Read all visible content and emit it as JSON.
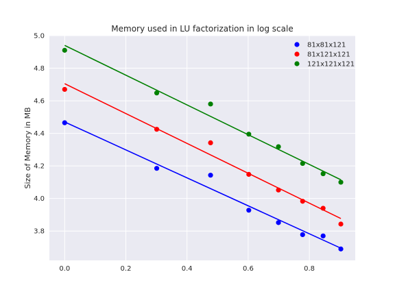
{
  "chart_data": {
    "type": "scatter",
    "title": "Memory used in LU factorization in log scale",
    "xlabel": "",
    "ylabel": "Size of Memory in MB",
    "xlim": [
      -0.05,
      0.95
    ],
    "ylim": [
      3.62,
      5.0
    ],
    "xticks": [
      0.0,
      0.2,
      0.4,
      0.6,
      0.8
    ],
    "xtick_labels": [
      "0.0",
      "0.2",
      "0.4",
      "0.6",
      "0.8"
    ],
    "yticks": [
      3.8,
      4.0,
      4.2,
      4.4,
      4.6,
      4.8,
      5.0
    ],
    "ytick_labels": [
      "3.8",
      "4.0",
      "4.2",
      "4.4",
      "4.6",
      "4.8",
      "5.0"
    ],
    "grid": true,
    "legend_position": "top-right",
    "x": [
      0.0,
      0.301,
      0.477,
      0.602,
      0.699,
      0.778,
      0.845,
      0.903
    ],
    "series": [
      {
        "name": "81x81x121",
        "color": "#0000ff",
        "values": [
          4.465,
          4.185,
          4.143,
          3.928,
          3.852,
          3.778,
          3.77,
          3.69
        ],
        "fit": [
          [
            0.0,
            4.47
          ],
          [
            0.903,
            3.695
          ]
        ]
      },
      {
        "name": "81x121x121",
        "color": "#ff0000",
        "values": [
          4.67,
          4.425,
          4.342,
          4.148,
          4.052,
          3.983,
          3.94,
          3.843
        ],
        "fit": [
          [
            0.0,
            4.705
          ],
          [
            0.903,
            3.877
          ]
        ]
      },
      {
        "name": "121x121x121",
        "color": "#008000",
        "values": [
          4.91,
          4.648,
          4.58,
          4.395,
          4.318,
          4.215,
          4.152,
          4.1
        ],
        "fit": [
          [
            0.0,
            4.94
          ],
          [
            0.903,
            4.115
          ]
        ]
      }
    ]
  }
}
